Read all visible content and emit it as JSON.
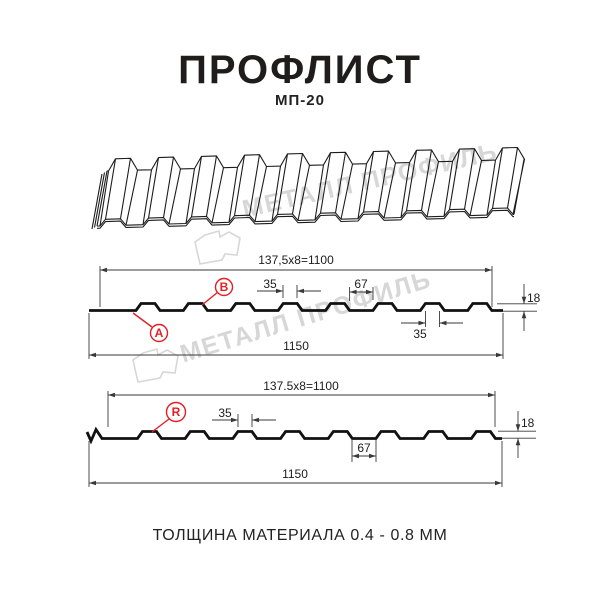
{
  "header": {
    "title": "ПРОФЛИСТ",
    "subtitle": "МП-20"
  },
  "watermark": {
    "text": "МЕТАЛЛ ПРОФИЛЬ"
  },
  "footer": {
    "text": "ТОЛЩИНА МАТЕРИАЛА 0.4 - 0.8 ММ"
  },
  "drawing": {
    "section_top": {
      "width_total": "137,5x8=1100",
      "rib_top_width": "35",
      "rib_spacing": "67",
      "height": "18",
      "rib_bottom_width": "35",
      "full_width": "1150",
      "label_a": "A",
      "label_b": "B"
    },
    "section_bottom": {
      "width_total": "137.5x8=1100",
      "rib_top_width": "35",
      "rib_spacing": "67",
      "height": "18",
      "full_width": "1150",
      "label_r": "R"
    },
    "colors": {
      "accent_red": "#e31e24",
      "line": "#1c1c1c",
      "watermark": "#d7d7d7"
    }
  }
}
